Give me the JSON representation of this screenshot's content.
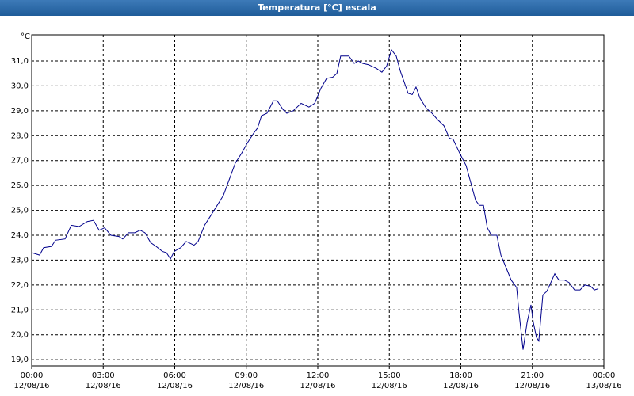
{
  "chart_data": {
    "type": "line",
    "title": "Temperatura [°C] escala",
    "y_unit": "°C",
    "color": "#00008b",
    "grid": true,
    "xlim": [
      0,
      24
    ],
    "ylim": [
      18.75,
      32.05
    ],
    "xticks": [
      {
        "value": 0,
        "label": "00:00\n12/08/16"
      },
      {
        "value": 3,
        "label": "03:00\n12/08/16"
      },
      {
        "value": 6,
        "label": "06:00\n12/08/16"
      },
      {
        "value": 9,
        "label": "09:00\n12/08/16"
      },
      {
        "value": 12,
        "label": "12:00\n12/08/16"
      },
      {
        "value": 15,
        "label": "15:00\n12/08/16"
      },
      {
        "value": 18,
        "label": "18:00\n12/08/16"
      },
      {
        "value": 21,
        "label": "21:00\n12/08/16"
      },
      {
        "value": 24,
        "label": "00:00\n13/08/16"
      }
    ],
    "yticks": [
      {
        "value": 19,
        "label": "19,0"
      },
      {
        "value": 20,
        "label": "20,0"
      },
      {
        "value": 21,
        "label": "21,0"
      },
      {
        "value": 22,
        "label": "22,0"
      },
      {
        "value": 23,
        "label": "23,0"
      },
      {
        "value": 24,
        "label": "24,0"
      },
      {
        "value": 25,
        "label": "25,0"
      },
      {
        "value": 26,
        "label": "26,0"
      },
      {
        "value": 27,
        "label": "27,0"
      },
      {
        "value": 28,
        "label": "28,0"
      },
      {
        "value": 29,
        "label": "29,0"
      },
      {
        "value": 30,
        "label": "30,0"
      },
      {
        "value": 31,
        "label": "31,0"
      }
    ],
    "x": [
      0,
      0.33,
      0.5,
      0.83,
      1.0,
      1.4,
      1.66,
      1.99,
      2.33,
      2.59,
      2.83,
      3.06,
      3.32,
      3.66,
      3.82,
      4.06,
      4.32,
      4.55,
      4.75,
      4.99,
      5.22,
      5.48,
      5.65,
      5.82,
      5.98,
      6.25,
      6.48,
      6.81,
      6.98,
      7.25,
      7.65,
      8.04,
      8.31,
      8.54,
      8.81,
      9.04,
      9.31,
      9.47,
      9.64,
      9.87,
      10.14,
      10.3,
      10.54,
      10.7,
      10.97,
      11.3,
      11.63,
      11.87,
      12.13,
      12.37,
      12.63,
      12.8,
      12.96,
      13.3,
      13.53,
      13.7,
      13.89,
      14.13,
      14.46,
      14.69,
      14.89,
      15.09,
      15.29,
      15.46,
      15.79,
      15.96,
      16.12,
      16.29,
      16.55,
      16.79,
      17.02,
      17.29,
      17.52,
      17.68,
      17.95,
      18.22,
      18.42,
      18.62,
      18.78,
      18.95,
      19.11,
      19.28,
      19.51,
      19.68,
      19.94,
      20.11,
      20.34,
      20.44,
      20.61,
      20.78,
      20.94,
      21.04,
      21.17,
      21.27,
      21.44,
      21.61,
      21.94,
      22.11,
      22.34,
      22.54,
      22.77,
      23.0,
      23.2,
      23.44,
      23.6,
      23.77
    ],
    "values": [
      23.3,
      23.2,
      23.5,
      23.55,
      23.8,
      23.85,
      24.4,
      24.35,
      24.55,
      24.6,
      24.2,
      24.3,
      24.0,
      23.95,
      23.85,
      24.1,
      24.1,
      24.2,
      24.1,
      23.7,
      23.55,
      23.35,
      23.3,
      23.05,
      23.35,
      23.5,
      23.75,
      23.6,
      23.75,
      24.4,
      25.0,
      25.6,
      26.3,
      26.9,
      27.3,
      27.7,
      28.1,
      28.3,
      28.8,
      28.9,
      29.4,
      29.4,
      29.05,
      28.9,
      29.0,
      29.3,
      29.15,
      29.3,
      29.9,
      30.3,
      30.35,
      30.5,
      31.2,
      31.2,
      30.9,
      31.0,
      30.9,
      30.85,
      30.7,
      30.55,
      30.8,
      31.45,
      31.2,
      30.6,
      29.7,
      29.65,
      29.95,
      29.5,
      29.1,
      28.9,
      28.65,
      28.4,
      27.9,
      27.85,
      27.3,
      26.8,
      26.1,
      25.4,
      25.2,
      25.2,
      24.3,
      24.0,
      24.0,
      23.2,
      22.6,
      22.2,
      21.9,
      20.9,
      19.4,
      20.5,
      21.2,
      20.5,
      19.9,
      19.75,
      21.6,
      21.75,
      22.45,
      22.2,
      22.2,
      22.1,
      21.8,
      21.8,
      22.0,
      21.95,
      21.8,
      21.85
    ]
  }
}
